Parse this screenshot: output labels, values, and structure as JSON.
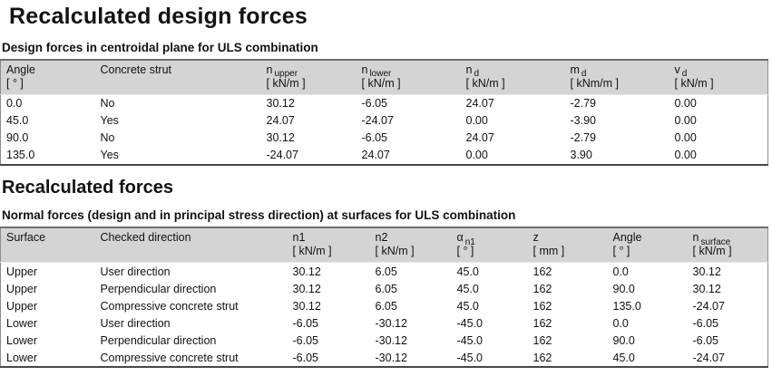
{
  "page": {
    "title": "Recalculated design forces",
    "section2_title": "Recalculated forces"
  },
  "colors": {
    "header_band": "#d4d4d4",
    "border_dark": "#474747",
    "border_mid": "#8c8c8c",
    "text": "#121212"
  },
  "table1": {
    "subtitle": "Design forces in centroidal plane for ULS combination",
    "columns": [
      {
        "base": "Angle",
        "sub": "",
        "unit": "[ ° ]"
      },
      {
        "base": "Concrete strut",
        "sub": "",
        "unit": ""
      },
      {
        "base": "n",
        "sub": "upper",
        "unit": "[ kN/m ]"
      },
      {
        "base": "n",
        "sub": "lower",
        "unit": "[ kN/m ]"
      },
      {
        "base": "n",
        "sub": "d",
        "unit": "[ kN/m ]"
      },
      {
        "base": "m",
        "sub": "d",
        "unit": "[ kNm/m ]"
      },
      {
        "base": "v",
        "sub": "d",
        "unit": "[ kN/m ]"
      }
    ],
    "rows": [
      [
        "0.0",
        "No",
        "30.12",
        "-6.05",
        "24.07",
        "-2.79",
        "0.00"
      ],
      [
        "45.0",
        "Yes",
        "24.07",
        "-24.07",
        "0.00",
        "-3.90",
        "0.00"
      ],
      [
        "90.0",
        "No",
        "30.12",
        "-6.05",
        "24.07",
        "-2.79",
        "0.00"
      ],
      [
        "135.0",
        "Yes",
        "-24.07",
        "24.07",
        "0.00",
        "3.90",
        "0.00"
      ]
    ]
  },
  "table2": {
    "subtitle": "Normal forces (design and in principal stress direction) at surfaces for ULS combination",
    "columns": [
      {
        "base": "Surface",
        "sub": "",
        "unit": ""
      },
      {
        "base": "Checked direction",
        "sub": "",
        "unit": ""
      },
      {
        "base": "n1",
        "sub": "",
        "unit": "[ kN/m ]"
      },
      {
        "base": "n2",
        "sub": "",
        "unit": "[ kN/m ]"
      },
      {
        "base": "α",
        "sub": "n1",
        "unit": "[ ° ]"
      },
      {
        "base": "z",
        "sub": "",
        "unit": "[ mm ]"
      },
      {
        "base": "Angle",
        "sub": "",
        "unit": "[ ° ]"
      },
      {
        "base": "n",
        "sub": "surface",
        "unit": "[ kN/m ]"
      }
    ],
    "rows": [
      [
        "Upper",
        "User direction",
        "30.12",
        "6.05",
        "45.0",
        "162",
        "0.0",
        "30.12"
      ],
      [
        "Upper",
        "Perpendicular direction",
        "30.12",
        "6.05",
        "45.0",
        "162",
        "90.0",
        "30.12"
      ],
      [
        "Upper",
        "Compressive concrete strut",
        "30.12",
        "6.05",
        "45.0",
        "162",
        "135.0",
        "-24.07"
      ],
      [
        "Lower",
        "User direction",
        "-6.05",
        "-30.12",
        "-45.0",
        "162",
        "0.0",
        "-6.05"
      ],
      [
        "Lower",
        "Perpendicular direction",
        "-6.05",
        "-30.12",
        "-45.0",
        "162",
        "90.0",
        "-6.05"
      ],
      [
        "Lower",
        "Compressive concrete strut",
        "-6.05",
        "-30.12",
        "-45.0",
        "162",
        "45.0",
        "-24.07"
      ]
    ]
  }
}
